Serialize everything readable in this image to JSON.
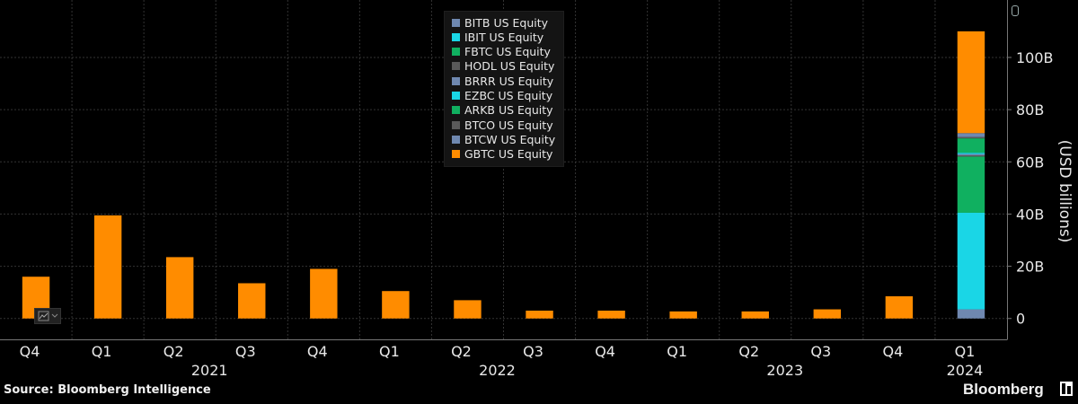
{
  "chart_data": {
    "type": "bar",
    "stacked": true,
    "categories": [
      "Q4",
      "Q1",
      "Q2",
      "Q3",
      "Q4",
      "Q1",
      "Q2",
      "Q3",
      "Q4",
      "Q1",
      "Q2",
      "Q3",
      "Q4",
      "Q1"
    ],
    "year_labels": [
      {
        "label": "2021",
        "start": 1,
        "end": 4
      },
      {
        "label": "2022",
        "start": 5,
        "end": 8
      },
      {
        "label": "2023",
        "start": 9,
        "end": 12
      },
      {
        "label": "2024",
        "start": 13,
        "end": 13
      }
    ],
    "series": [
      {
        "name": "BITB US Equity",
        "color": "#6f88b0",
        "values": [
          0,
          0,
          0,
          0,
          0,
          0,
          0,
          0,
          0,
          0,
          0,
          0,
          0,
          3.5
        ]
      },
      {
        "name": "IBIT US Equity",
        "color": "#1ad6e6",
        "values": [
          0,
          0,
          0,
          0,
          0,
          0,
          0,
          0,
          0,
          0,
          0,
          0,
          0,
          37
        ]
      },
      {
        "name": "FBTC US Equity",
        "color": "#10b060",
        "values": [
          0,
          0,
          0,
          0,
          0,
          0,
          0,
          0,
          0,
          0,
          0,
          0,
          0,
          21.5
        ]
      },
      {
        "name": "HODL US Equity",
        "color": "#5a5a5a",
        "values": [
          0,
          0,
          0,
          0,
          0,
          0,
          0,
          0,
          0,
          0,
          0,
          0,
          0,
          0.5
        ]
      },
      {
        "name": "BRRR US Equity",
        "color": "#6f88b0",
        "values": [
          0,
          0,
          0,
          0,
          0,
          0,
          0,
          0,
          0,
          0,
          0,
          0,
          0,
          0.5
        ]
      },
      {
        "name": "EZBC US Equity",
        "color": "#1ad6e6",
        "values": [
          0,
          0,
          0,
          0,
          0,
          0,
          0,
          0,
          0,
          0,
          0,
          0,
          0,
          0.5
        ]
      },
      {
        "name": "ARKB US Equity",
        "color": "#10b060",
        "values": [
          0,
          0,
          0,
          0,
          0,
          0,
          0,
          0,
          0,
          0,
          0,
          0,
          0,
          5.5
        ]
      },
      {
        "name": "BTCO US Equity",
        "color": "#5a5a5a",
        "values": [
          0,
          0,
          0,
          0,
          0,
          0,
          0,
          0,
          0,
          0,
          0,
          0,
          0,
          0.5
        ]
      },
      {
        "name": "BTCW US Equity",
        "color": "#6f88b0",
        "values": [
          0,
          0,
          0,
          0,
          0,
          0,
          0,
          0,
          0,
          0,
          0,
          0,
          0,
          1.5
        ]
      },
      {
        "name": "GBTC US Equity",
        "color": "#ff8c00",
        "values": [
          16,
          39.5,
          23.5,
          13.5,
          19,
          10.5,
          7,
          3,
          3,
          2.7,
          2.7,
          3.5,
          8.5,
          39
        ]
      }
    ],
    "ylabel": "(USD billions)",
    "ylim": [
      -8,
      122
    ],
    "yticks": [
      0,
      20,
      40,
      60,
      80,
      100
    ],
    "ytick_labels": [
      "0",
      "20B",
      "40B",
      "60B",
      "80B",
      "100B"
    ],
    "grid": true,
    "legend_position": "top-center"
  },
  "footer": {
    "source": "Source: Bloomberg Intelligence",
    "brand": "Bloomberg"
  }
}
